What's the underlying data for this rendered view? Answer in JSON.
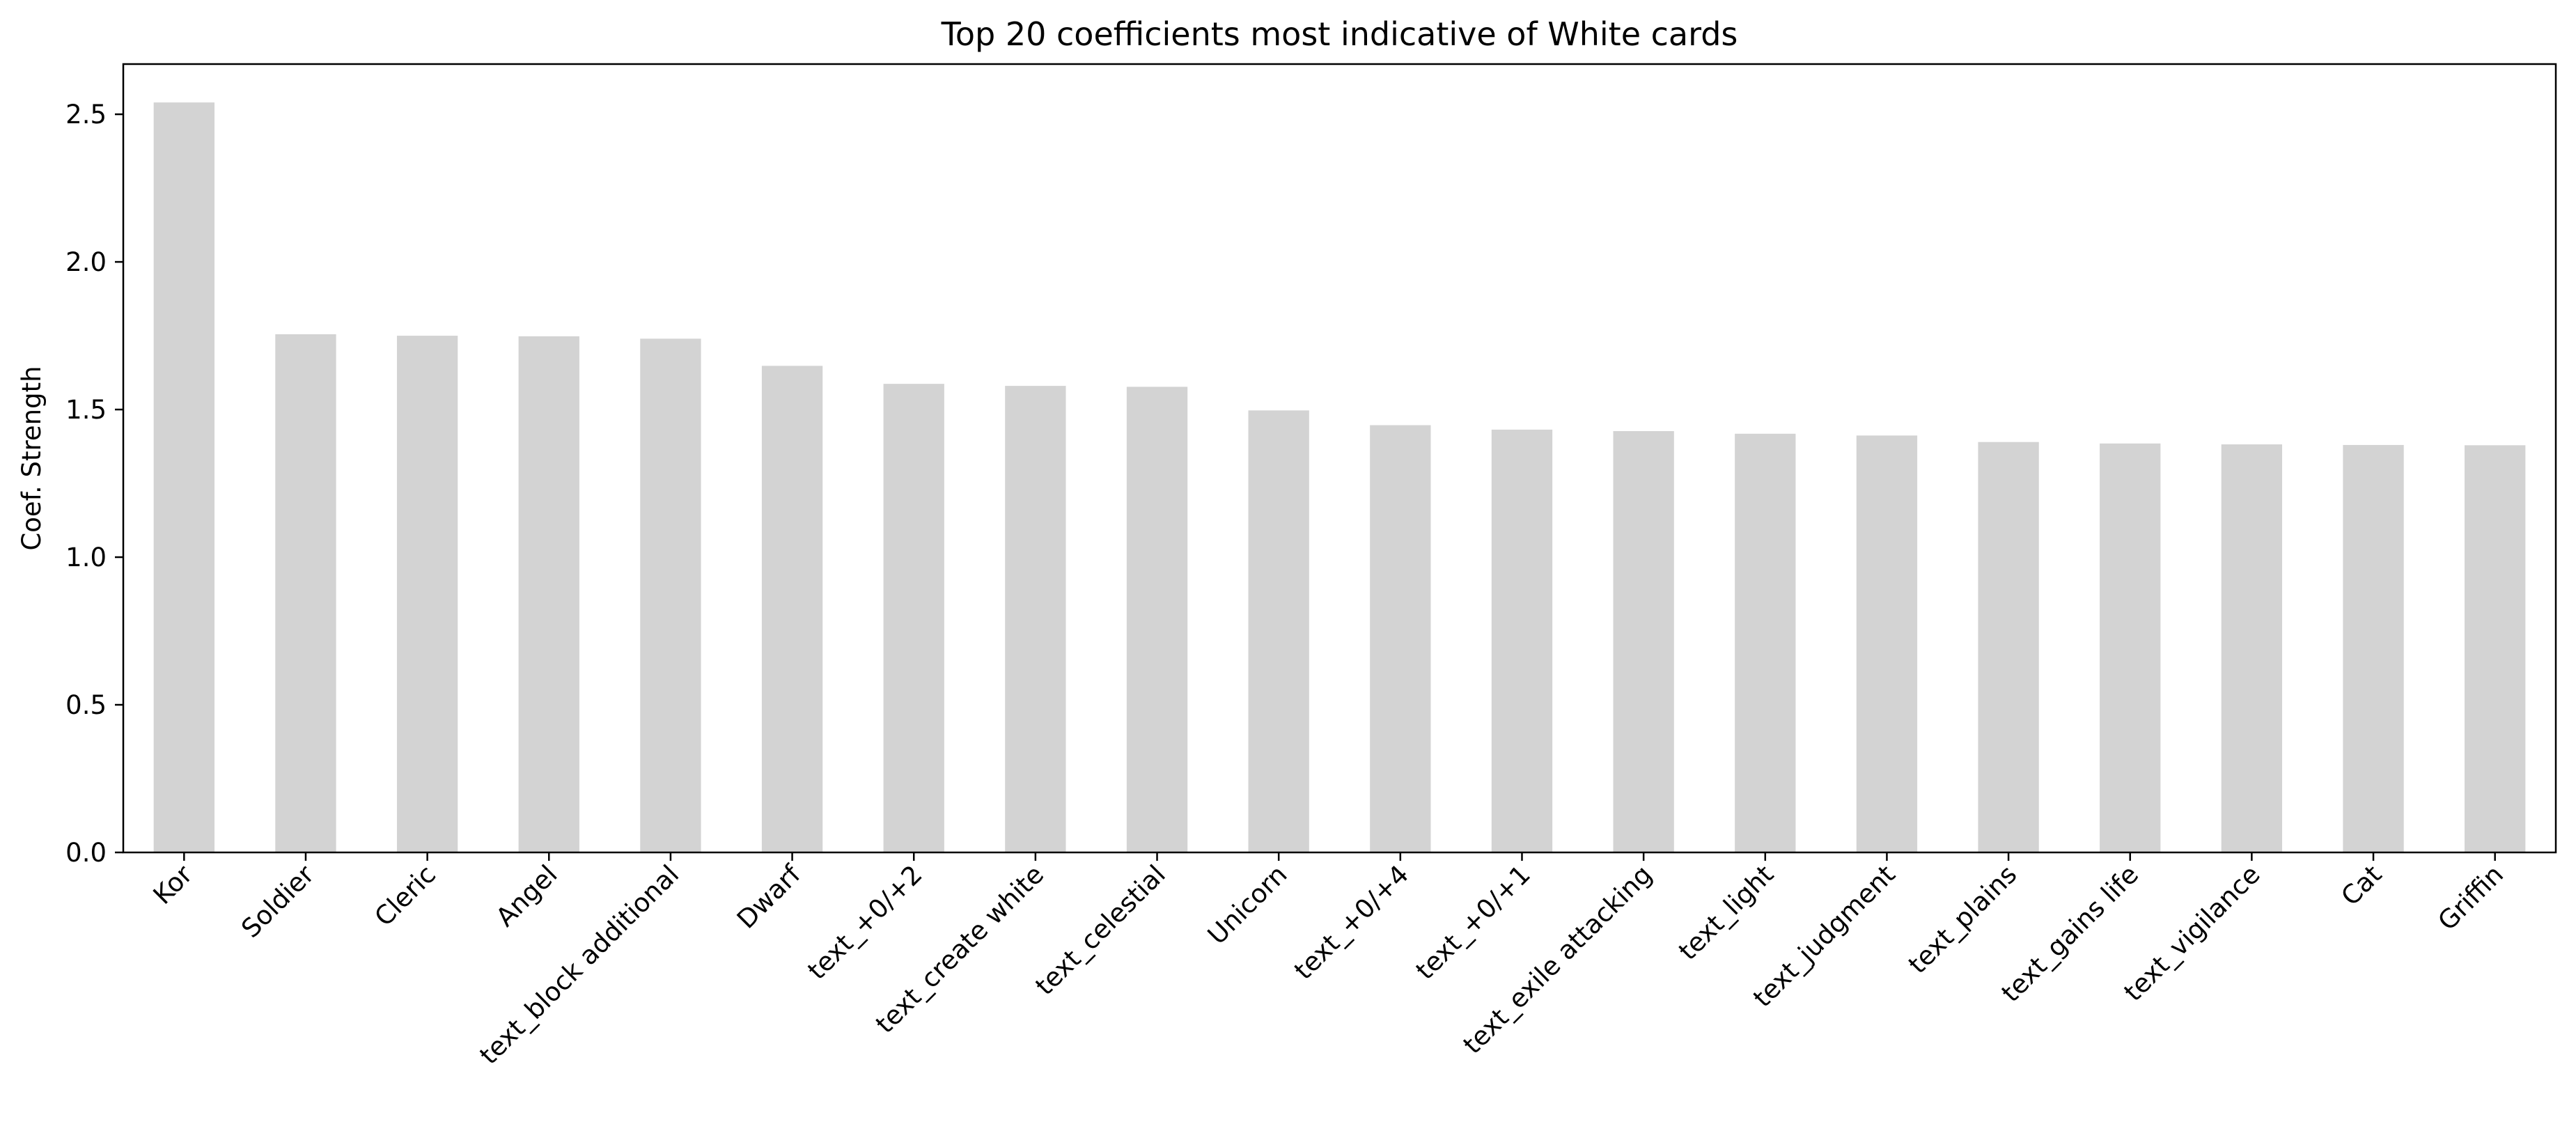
{
  "chart_data": {
    "type": "bar",
    "title": "Top 20 coefficients most indicative of White cards",
    "xlabel": "",
    "ylabel": "Coef. Strength",
    "categories": [
      "Kor",
      "Soldier",
      "Cleric",
      "Angel",
      "text_block additional",
      "Dwarf",
      "text_+0/+2",
      "text_create white",
      "text_celestial",
      "Unicorn",
      "text_+0/+4",
      "text_+0/+1",
      "text_exile attacking",
      "text_light",
      "text_judgment",
      "text_plains",
      "text_gains life",
      "text_vigilance",
      "Cat",
      "Griffin"
    ],
    "values": [
      2.54,
      1.755,
      1.75,
      1.748,
      1.74,
      1.648,
      1.587,
      1.58,
      1.577,
      1.497,
      1.447,
      1.432,
      1.427,
      1.418,
      1.412,
      1.39,
      1.385,
      1.382,
      1.38,
      1.379
    ],
    "ylim": [
      0,
      2.67
    ],
    "yticks": [
      0.0,
      0.5,
      1.0,
      1.5,
      2.0,
      2.5
    ],
    "ytick_labels": [
      "0.0",
      "0.5",
      "1.0",
      "1.5",
      "2.0",
      "2.5"
    ],
    "bar_color": "#d3d3d3",
    "grid": false,
    "legend": "none"
  }
}
